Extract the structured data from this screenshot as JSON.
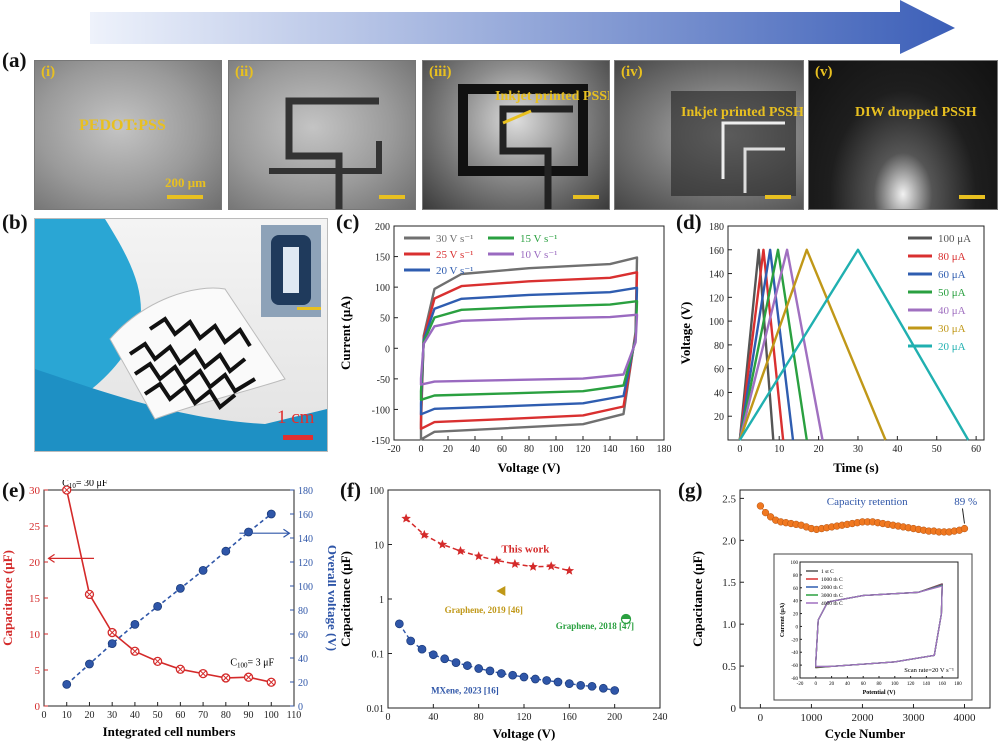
{
  "panel_labels": {
    "a": "(a)",
    "b": "(b)",
    "c": "(c)",
    "d": "(d)",
    "e": "(e)",
    "f": "(f)",
    "g": "(g)"
  },
  "colors": {
    "arrow": "#3c5fb8",
    "label_yellow": "#e8c020",
    "red": "#d42a2a",
    "blue": "#2f56a8",
    "orange": "#f07820"
  },
  "panel_a": {
    "frames": [
      {
        "numeral": "(i)",
        "text": "PEDOT:PSS",
        "scale_label": "200 μm"
      },
      {
        "numeral": "(ii)",
        "text": "",
        "scale_label": ""
      },
      {
        "numeral": "(iii)",
        "text": "Inkjet printed PSSH",
        "scale_label": ""
      },
      {
        "numeral": "(iv)",
        "text": "Inkjet printed PSSH",
        "scale_label": ""
      },
      {
        "numeral": "(v)",
        "text": "DIW dropped PSSH",
        "scale_label": ""
      }
    ]
  },
  "panel_b": {
    "scale_label": "1 cm"
  },
  "chart_data": [
    {
      "id": "c",
      "type": "line",
      "xlabel": "Voltage (V)",
      "ylabel": "Current (μA)",
      "xlim": [
        -20,
        180
      ],
      "ylim": [
        -150,
        200
      ],
      "xticks": [
        -20,
        0,
        20,
        40,
        60,
        80,
        100,
        120,
        140,
        160,
        180
      ],
      "yticks": [
        -150,
        -100,
        -50,
        0,
        50,
        100,
        150,
        200
      ],
      "legend_position": "top-left",
      "series": [
        {
          "name": "30 V s⁻¹",
          "color": "#707070",
          "upper": 135,
          "lower": -138
        },
        {
          "name": "25 V s⁻¹",
          "color": "#d93030",
          "upper": 113,
          "lower": -122
        },
        {
          "name": "20 V s⁻¹",
          "color": "#2f5db0",
          "upper": 90,
          "lower": -100
        },
        {
          "name": "15 V s⁻¹",
          "color": "#2aa040",
          "upper": 70,
          "lower": -78
        },
        {
          "name": "10 V s⁻¹",
          "color": "#9a6ac0",
          "upper": 50,
          "lower": -55
        }
      ]
    },
    {
      "id": "d",
      "type": "line",
      "xlabel": "Time (s)",
      "ylabel": "Voltage (V)",
      "xlim": [
        -3,
        62
      ],
      "ylim": [
        0,
        180
      ],
      "xticks": [
        0,
        10,
        20,
        30,
        40,
        50,
        60
      ],
      "yticks": [
        20,
        40,
        60,
        80,
        100,
        120,
        140,
        160,
        180
      ],
      "legend_position": "top-right",
      "series": [
        {
          "name": "100 μA",
          "color": "#555555",
          "peak_time": 4.8,
          "end_time": 8.5,
          "peak": 160
        },
        {
          "name": "80 μA",
          "color": "#d93030",
          "peak_time": 6.0,
          "end_time": 11.0,
          "peak": 160
        },
        {
          "name": "60 μA",
          "color": "#2f5db0",
          "peak_time": 7.7,
          "end_time": 13.5,
          "peak": 160
        },
        {
          "name": "50 μA",
          "color": "#2aa040",
          "peak_time": 9.7,
          "end_time": 17.0,
          "peak": 160
        },
        {
          "name": "40 μA",
          "color": "#a070c0",
          "peak_time": 12.0,
          "end_time": 21.0,
          "peak": 160
        },
        {
          "name": "30 μA",
          "color": "#c09818",
          "peak_time": 17.0,
          "end_time": 37.0,
          "peak": 160
        },
        {
          "name": "20 μA",
          "color": "#20b0b0",
          "peak_time": 30.0,
          "end_time": 58.0,
          "peak": 160
        }
      ]
    },
    {
      "id": "e",
      "type": "scatter",
      "xlabel": "Integrated cell numbers",
      "ylabel_left": "Capacitance (μF)",
      "ylabel_right": "Overall voltage (V)",
      "xlim": [
        0,
        110
      ],
      "ylim_left": [
        0,
        30
      ],
      "ylim_right": [
        0,
        180
      ],
      "xticks": [
        0,
        10,
        20,
        30,
        40,
        50,
        60,
        70,
        80,
        90,
        100,
        110
      ],
      "yticks_left": [
        0,
        5,
        10,
        15,
        20,
        25,
        30
      ],
      "yticks_right": [
        0,
        20,
        40,
        60,
        80,
        100,
        120,
        140,
        160,
        180
      ],
      "series": [
        {
          "name": "Capacitance",
          "axis": "left",
          "color": "#d42a2a",
          "x": [
            10,
            20,
            30,
            40,
            50,
            60,
            70,
            80,
            90,
            100
          ],
          "y": [
            30,
            15.5,
            10.2,
            7.6,
            6.2,
            5.1,
            4.5,
            3.9,
            4.0,
            3.3
          ]
        },
        {
          "name": "Overall voltage",
          "axis": "right",
          "color": "#2f56a8",
          "x": [
            10,
            20,
            30,
            40,
            50,
            60,
            70,
            80,
            90,
            100
          ],
          "y": [
            18,
            35,
            52,
            68,
            83,
            98,
            113,
            129,
            145,
            160
          ]
        }
      ],
      "annotations": [
        {
          "text": "C",
          "sub": "10",
          "rest": "= 30 μF"
        },
        {
          "text": "C",
          "sub": "100",
          "rest": "= 3 μF"
        }
      ]
    },
    {
      "id": "f",
      "type": "scatter",
      "yscale": "log",
      "xlabel": "Voltage (V)",
      "ylabel": "Capacitance (μF)",
      "xlim": [
        0,
        240
      ],
      "ylim": [
        0.01,
        100
      ],
      "xticks": [
        0,
        40,
        80,
        120,
        160,
        200,
        240
      ],
      "yticks": [
        0.01,
        0.1,
        1,
        10,
        100
      ],
      "ytick_labels": [
        "0.01",
        "0.1",
        "1",
        "10",
        "100"
      ],
      "series": [
        {
          "name": "This work",
          "color": "#d42a2a",
          "marker": "star",
          "x": [
            16,
            32,
            48,
            64,
            80,
            96,
            112,
            128,
            144,
            160
          ],
          "y": [
            30,
            15,
            10,
            7.6,
            6.1,
            5.1,
            4.4,
            3.9,
            4.0,
            3.3
          ]
        },
        {
          "name": "MXene, 2023 [16]",
          "color": "#2f56a8",
          "marker": "circle",
          "x": [
            10,
            20,
            30,
            40,
            50,
            60,
            70,
            80,
            90,
            100,
            110,
            120,
            130,
            140,
            150,
            160,
            170,
            180,
            190,
            200
          ],
          "y": [
            0.35,
            0.17,
            0.12,
            0.095,
            0.08,
            0.068,
            0.06,
            0.053,
            0.048,
            0.043,
            0.04,
            0.037,
            0.034,
            0.032,
            0.03,
            0.028,
            0.026,
            0.025,
            0.023,
            0.021
          ]
        },
        {
          "name": "Graphene, 2019 [46]",
          "color": "#c09818",
          "marker": "triangle",
          "x": [
            100
          ],
          "y": [
            1.4
          ]
        },
        {
          "name": "Graphene, 2018 [47]",
          "color": "#2aa040",
          "marker": "halfcircle",
          "x": [
            210
          ],
          "y": [
            0.43
          ]
        }
      ]
    },
    {
      "id": "g",
      "type": "scatter",
      "xlabel": "Cycle Number",
      "ylabel": "Capacitance (μF)",
      "xlim": [
        -400,
        4500
      ],
      "ylim": [
        0,
        2.6
      ],
      "xticks": [
        0,
        1000,
        2000,
        3000,
        4000
      ],
      "yticks": [
        0,
        0.5,
        1.0,
        1.5,
        2.0,
        2.5
      ],
      "ytick_labels": [
        "0",
        "0.5",
        "1.0",
        "1.5",
        "2.0",
        "2.5"
      ],
      "annotation": "Capacity retention",
      "annotation_value": "89 %",
      "series": [
        {
          "name": "Capacitance",
          "color": "#f07820",
          "x": [
            0,
            100,
            200,
            300,
            400,
            500,
            600,
            700,
            800,
            900,
            1000,
            1100,
            1200,
            1300,
            1400,
            1500,
            1600,
            1700,
            1800,
            1900,
            2000,
            2100,
            2200,
            2300,
            2400,
            2500,
            2600,
            2700,
            2800,
            2900,
            3000,
            3100,
            3200,
            3300,
            3400,
            3500,
            3600,
            3700,
            3800,
            3900,
            4000
          ],
          "y": [
            2.41,
            2.33,
            2.28,
            2.24,
            2.22,
            2.21,
            2.2,
            2.19,
            2.18,
            2.16,
            2.14,
            2.13,
            2.14,
            2.15,
            2.16,
            2.17,
            2.18,
            2.19,
            2.2,
            2.21,
            2.22,
            2.22,
            2.22,
            2.21,
            2.2,
            2.19,
            2.18,
            2.17,
            2.16,
            2.15,
            2.14,
            2.13,
            2.12,
            2.11,
            2.11,
            2.1,
            2.1,
            2.1,
            2.11,
            2.12,
            2.14
          ]
        }
      ],
      "inset": {
        "xlabel": "Potential (V)",
        "ylabel": "Current (μA)",
        "xlim": [
          -20,
          180
        ],
        "ylim": [
          -80,
          100
        ],
        "xticks": [
          -20,
          0,
          20,
          40,
          60,
          80,
          100,
          120,
          140,
          160,
          180
        ],
        "yticks": [
          -80,
          -60,
          -40,
          -20,
          0,
          20,
          40,
          60,
          80,
          100
        ],
        "scan_rate": "Scan rate=20 V s⁻¹",
        "series": [
          {
            "name": "1 st C",
            "color": "#555555"
          },
          {
            "name": "1000 th C",
            "color": "#d93030"
          },
          {
            "name": "2000 th C",
            "color": "#2f5db0"
          },
          {
            "name": "3000 th C",
            "color": "#2aa040"
          },
          {
            "name": "4000 th C",
            "color": "#a070c0"
          }
        ]
      }
    }
  ]
}
